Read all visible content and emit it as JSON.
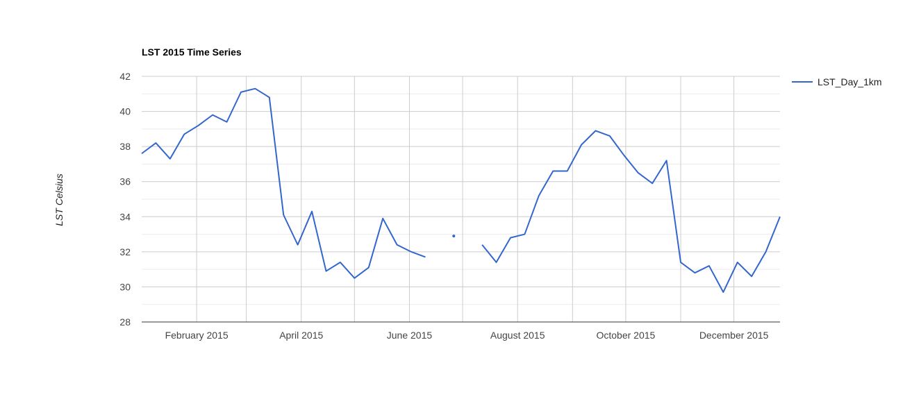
{
  "chart_data": {
    "type": "line",
    "title": "LST 2015 Time Series",
    "xlabel": "",
    "ylabel": "LST Celsius",
    "ylim": [
      28,
      42
    ],
    "y_ticks": [
      28,
      30,
      32,
      34,
      36,
      38,
      40,
      42
    ],
    "xlim": [
      "2015-01-01",
      "2015-12-27"
    ],
    "x_ticks": [
      {
        "date": "2015-02-01",
        "label": "February 2015"
      },
      {
        "date": "2015-04-01",
        "label": "April 2015"
      },
      {
        "date": "2015-06-01",
        "label": "June 2015"
      },
      {
        "date": "2015-08-01",
        "label": "August 2015"
      },
      {
        "date": "2015-10-01",
        "label": "October 2015"
      },
      {
        "date": "2015-12-01",
        "label": "December 2015"
      }
    ],
    "x_gridlines": [
      "2015-02-01",
      "2015-03-01",
      "2015-04-01",
      "2015-05-01",
      "2015-06-01",
      "2015-07-01",
      "2015-08-01",
      "2015-09-01",
      "2015-10-01",
      "2015-11-01",
      "2015-12-01"
    ],
    "grid": true,
    "legend": "right",
    "color": "#3366cc",
    "series": [
      {
        "name": "LST_Day_1km",
        "color": "#3366cc",
        "x": [
          "2015-01-01",
          "2015-01-09",
          "2015-01-17",
          "2015-01-25",
          "2015-02-02",
          "2015-02-10",
          "2015-02-18",
          "2015-02-26",
          "2015-03-06",
          "2015-03-14",
          "2015-03-22",
          "2015-03-30",
          "2015-04-07",
          "2015-04-15",
          "2015-04-23",
          "2015-05-01",
          "2015-05-09",
          "2015-05-17",
          "2015-05-25",
          "2015-06-02",
          "2015-06-10",
          "2015-06-18",
          "2015-06-26",
          "2015-07-04",
          "2015-07-12",
          "2015-07-20",
          "2015-07-28",
          "2015-08-05",
          "2015-08-13",
          "2015-08-21",
          "2015-08-29",
          "2015-09-06",
          "2015-09-14",
          "2015-09-22",
          "2015-09-30",
          "2015-10-08",
          "2015-10-16",
          "2015-10-24",
          "2015-11-01",
          "2015-11-09",
          "2015-11-17",
          "2015-11-25",
          "2015-12-03",
          "2015-12-11",
          "2015-12-19",
          "2015-12-27"
        ],
        "values": [
          37.6,
          38.2,
          37.3,
          38.7,
          39.2,
          39.8,
          39.4,
          41.1,
          41.3,
          40.8,
          34.1,
          32.4,
          34.3,
          30.9,
          31.4,
          30.5,
          31.1,
          33.9,
          32.4,
          32.0,
          31.7,
          null,
          32.9,
          null,
          32.4,
          31.4,
          32.8,
          33.0,
          35.2,
          36.6,
          36.6,
          38.1,
          38.9,
          38.6,
          37.5,
          36.5,
          35.9,
          37.2,
          31.4,
          30.8,
          31.2,
          29.7,
          31.4,
          30.6,
          32.0,
          34.0
        ]
      }
    ]
  }
}
